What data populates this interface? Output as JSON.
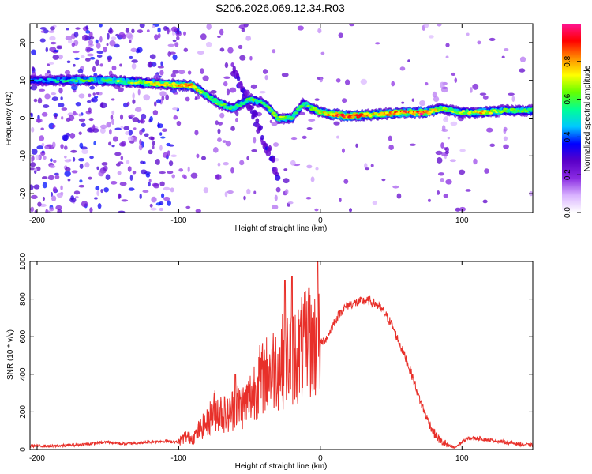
{
  "figure_title": "S206.2026.069.12.34.R03",
  "colors": {
    "snr_line": "#e8302a",
    "frame": "#000000"
  },
  "chart_data": [
    {
      "type": "heatmap",
      "title": "S206.2026.069.12.34.R03",
      "xlabel": "Height of straight line (km)",
      "ylabel": "Frequency (Hz)",
      "xlim": [
        -205,
        150
      ],
      "ylim": [
        -25,
        25
      ],
      "x_ticks": [
        -200,
        -100,
        0,
        100
      ],
      "x_tick_labels": [
        "-200",
        "-100",
        "0",
        "100"
      ],
      "y_ticks": [
        -20,
        -10,
        0,
        10,
        20
      ],
      "y_tick_labels": [
        "-20",
        "-10",
        "0",
        "10",
        "20"
      ],
      "colorbar": {
        "label": "Normalized spectral amplitude",
        "range": [
          0,
          1
        ],
        "ticks": [
          0.0,
          0.2,
          0.4,
          0.6,
          0.8
        ],
        "tick_labels": [
          "0.0",
          "0.2",
          "0.4",
          "0.6",
          "0.8"
        ],
        "colormap": [
          "#ffffff",
          "#d9b3ff",
          "#8a2be2",
          "#5a00c8",
          "#0000ff",
          "#00c8ff",
          "#00ff96",
          "#64ff00",
          "#ffff00",
          "#ff8c00",
          "#ff0000",
          "#ff1493"
        ]
      },
      "ridge": [
        {
          "x": -205,
          "f": 10,
          "amp": 0.35
        },
        {
          "x": -185,
          "f": 10,
          "amp": 0.45
        },
        {
          "x": -170,
          "f": 10,
          "amp": 0.5
        },
        {
          "x": -150,
          "f": 10,
          "amp": 0.6
        },
        {
          "x": -130,
          "f": 9.5,
          "amp": 0.65
        },
        {
          "x": -110,
          "f": 9,
          "amp": 0.7
        },
        {
          "x": -90,
          "f": 8.5,
          "amp": 0.8
        },
        {
          "x": -80,
          "f": 6,
          "amp": 0.5
        },
        {
          "x": -72,
          "f": 4,
          "amp": 0.6
        },
        {
          "x": -62,
          "f": 2.5,
          "amp": 0.5
        },
        {
          "x": -50,
          "f": 5,
          "amp": 0.55
        },
        {
          "x": -40,
          "f": 4,
          "amp": 0.5
        },
        {
          "x": -30,
          "f": 0,
          "amp": 0.6
        },
        {
          "x": -20,
          "f": 0,
          "amp": 0.55
        },
        {
          "x": -12,
          "f": 4,
          "amp": 0.5
        },
        {
          "x": -8,
          "f": 3,
          "amp": 0.55
        },
        {
          "x": 0,
          "f": 1.5,
          "amp": 0.65
        },
        {
          "x": 10,
          "f": 1,
          "amp": 0.8
        },
        {
          "x": 20,
          "f": 0.5,
          "amp": 0.9
        },
        {
          "x": 40,
          "f": 1,
          "amp": 0.7
        },
        {
          "x": 60,
          "f": 1.5,
          "amp": 0.85
        },
        {
          "x": 75,
          "f": 1.5,
          "amp": 0.9
        },
        {
          "x": 85,
          "f": 2.5,
          "amp": 0.6
        },
        {
          "x": 100,
          "f": 1.5,
          "amp": 0.6
        },
        {
          "x": 115,
          "f": 1.5,
          "amp": 0.75
        },
        {
          "x": 130,
          "f": 2,
          "amp": 0.55
        },
        {
          "x": 150,
          "f": 2,
          "amp": 0.55
        }
      ],
      "branch": [
        {
          "x": -62,
          "f": 13,
          "amp": 0.15
        },
        {
          "x": -55,
          "f": 8,
          "amp": 0.2
        },
        {
          "x": -48,
          "f": 2,
          "amp": 0.25
        },
        {
          "x": -42,
          "f": -4,
          "amp": 0.2
        },
        {
          "x": -35,
          "f": -10,
          "amp": 0.2
        },
        {
          "x": -30,
          "f": -15,
          "amp": 0.2
        }
      ]
    },
    {
      "type": "line",
      "xlabel": "Height of straight line (km)",
      "ylabel": "SNR (10 * v/v)",
      "xlim": [
        -205,
        150
      ],
      "ylim": [
        0,
        1000
      ],
      "x_ticks": [
        -200,
        -100,
        0,
        100
      ],
      "x_tick_labels": [
        "-200",
        "-100",
        "0",
        "100"
      ],
      "y_ticks": [
        0,
        200,
        400,
        600,
        800,
        1000
      ],
      "y_tick_labels": [
        "0",
        "200",
        "400",
        "600",
        "800",
        "1000"
      ],
      "series": [
        {
          "name": "SNR",
          "x": [
            -205,
            -190,
            -170,
            -150,
            -140,
            -130,
            -120,
            -110,
            -100,
            -95,
            -90,
            -85,
            -80,
            -75,
            -70,
            -65,
            -60,
            -55,
            -50,
            -45,
            -40,
            -35,
            -30,
            -25,
            -20,
            -15,
            -10,
            -5,
            0,
            5,
            10,
            15,
            20,
            25,
            30,
            35,
            40,
            45,
            50,
            55,
            60,
            65,
            70,
            75,
            80,
            85,
            90,
            95,
            100,
            105,
            110,
            115,
            120,
            125,
            130,
            135,
            140,
            145,
            150
          ],
          "values": [
            20,
            18,
            25,
            40,
            30,
            35,
            40,
            45,
            40,
            70,
            60,
            110,
            140,
            210,
            200,
            180,
            240,
            230,
            270,
            350,
            380,
            420,
            450,
            480,
            500,
            520,
            550,
            560,
            560,
            600,
            680,
            740,
            770,
            780,
            790,
            790,
            770,
            730,
            670,
            580,
            490,
            390,
            270,
            170,
            90,
            45,
            20,
            10,
            40,
            60,
            60,
            55,
            50,
            45,
            40,
            35,
            30,
            25,
            22
          ]
        }
      ],
      "spikes": [
        {
          "x": -60,
          "value": 400
        },
        {
          "x": -40,
          "value": 470
        },
        {
          "x": -25,
          "value": 900
        },
        {
          "x": -20,
          "value": 920
        },
        {
          "x": -8,
          "value": 860
        },
        {
          "x": -2,
          "value": 1000
        }
      ]
    }
  ]
}
